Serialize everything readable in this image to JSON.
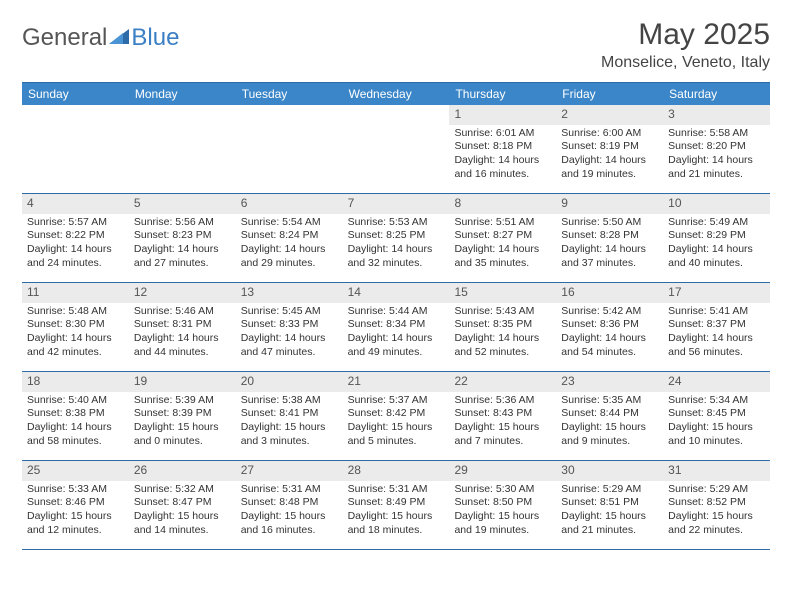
{
  "logo": {
    "general": "General",
    "blue": "Blue"
  },
  "title": "May 2025",
  "location": "Monselice, Veneto, Italy",
  "colors": {
    "header_bg": "#3b86c8",
    "border": "#2d6aa8",
    "daynum_bg": "#ebebeb",
    "text": "#333333",
    "logo_gray": "#555555",
    "logo_blue": "#3b7fc4",
    "page_bg": "#ffffff"
  },
  "dow": [
    "Sunday",
    "Monday",
    "Tuesday",
    "Wednesday",
    "Thursday",
    "Friday",
    "Saturday"
  ],
  "weeks": [
    [
      null,
      null,
      null,
      null,
      {
        "n": "1",
        "sr": "6:01 AM",
        "ss": "8:18 PM",
        "dh": "14",
        "dm": "16"
      },
      {
        "n": "2",
        "sr": "6:00 AM",
        "ss": "8:19 PM",
        "dh": "14",
        "dm": "19"
      },
      {
        "n": "3",
        "sr": "5:58 AM",
        "ss": "8:20 PM",
        "dh": "14",
        "dm": "21"
      }
    ],
    [
      {
        "n": "4",
        "sr": "5:57 AM",
        "ss": "8:22 PM",
        "dh": "14",
        "dm": "24"
      },
      {
        "n": "5",
        "sr": "5:56 AM",
        "ss": "8:23 PM",
        "dh": "14",
        "dm": "27"
      },
      {
        "n": "6",
        "sr": "5:54 AM",
        "ss": "8:24 PM",
        "dh": "14",
        "dm": "29"
      },
      {
        "n": "7",
        "sr": "5:53 AM",
        "ss": "8:25 PM",
        "dh": "14",
        "dm": "32"
      },
      {
        "n": "8",
        "sr": "5:51 AM",
        "ss": "8:27 PM",
        "dh": "14",
        "dm": "35"
      },
      {
        "n": "9",
        "sr": "5:50 AM",
        "ss": "8:28 PM",
        "dh": "14",
        "dm": "37"
      },
      {
        "n": "10",
        "sr": "5:49 AM",
        "ss": "8:29 PM",
        "dh": "14",
        "dm": "40"
      }
    ],
    [
      {
        "n": "11",
        "sr": "5:48 AM",
        "ss": "8:30 PM",
        "dh": "14",
        "dm": "42"
      },
      {
        "n": "12",
        "sr": "5:46 AM",
        "ss": "8:31 PM",
        "dh": "14",
        "dm": "44"
      },
      {
        "n": "13",
        "sr": "5:45 AM",
        "ss": "8:33 PM",
        "dh": "14",
        "dm": "47"
      },
      {
        "n": "14",
        "sr": "5:44 AM",
        "ss": "8:34 PM",
        "dh": "14",
        "dm": "49"
      },
      {
        "n": "15",
        "sr": "5:43 AM",
        "ss": "8:35 PM",
        "dh": "14",
        "dm": "52"
      },
      {
        "n": "16",
        "sr": "5:42 AM",
        "ss": "8:36 PM",
        "dh": "14",
        "dm": "54"
      },
      {
        "n": "17",
        "sr": "5:41 AM",
        "ss": "8:37 PM",
        "dh": "14",
        "dm": "56"
      }
    ],
    [
      {
        "n": "18",
        "sr": "5:40 AM",
        "ss": "8:38 PM",
        "dh": "14",
        "dm": "58"
      },
      {
        "n": "19",
        "sr": "5:39 AM",
        "ss": "8:39 PM",
        "dh": "15",
        "dm": "0"
      },
      {
        "n": "20",
        "sr": "5:38 AM",
        "ss": "8:41 PM",
        "dh": "15",
        "dm": "3"
      },
      {
        "n": "21",
        "sr": "5:37 AM",
        "ss": "8:42 PM",
        "dh": "15",
        "dm": "5"
      },
      {
        "n": "22",
        "sr": "5:36 AM",
        "ss": "8:43 PM",
        "dh": "15",
        "dm": "7"
      },
      {
        "n": "23",
        "sr": "5:35 AM",
        "ss": "8:44 PM",
        "dh": "15",
        "dm": "9"
      },
      {
        "n": "24",
        "sr": "5:34 AM",
        "ss": "8:45 PM",
        "dh": "15",
        "dm": "10"
      }
    ],
    [
      {
        "n": "25",
        "sr": "5:33 AM",
        "ss": "8:46 PM",
        "dh": "15",
        "dm": "12"
      },
      {
        "n": "26",
        "sr": "5:32 AM",
        "ss": "8:47 PM",
        "dh": "15",
        "dm": "14"
      },
      {
        "n": "27",
        "sr": "5:31 AM",
        "ss": "8:48 PM",
        "dh": "15",
        "dm": "16"
      },
      {
        "n": "28",
        "sr": "5:31 AM",
        "ss": "8:49 PM",
        "dh": "15",
        "dm": "18"
      },
      {
        "n": "29",
        "sr": "5:30 AM",
        "ss": "8:50 PM",
        "dh": "15",
        "dm": "19"
      },
      {
        "n": "30",
        "sr": "5:29 AM",
        "ss": "8:51 PM",
        "dh": "15",
        "dm": "21"
      },
      {
        "n": "31",
        "sr": "5:29 AM",
        "ss": "8:52 PM",
        "dh": "15",
        "dm": "22"
      }
    ]
  ],
  "labels": {
    "sunrise": "Sunrise:",
    "sunset": "Sunset:",
    "daylight_prefix": "Daylight:",
    "hours_word": "hours",
    "and_word": "and",
    "minutes_word": "minutes."
  }
}
